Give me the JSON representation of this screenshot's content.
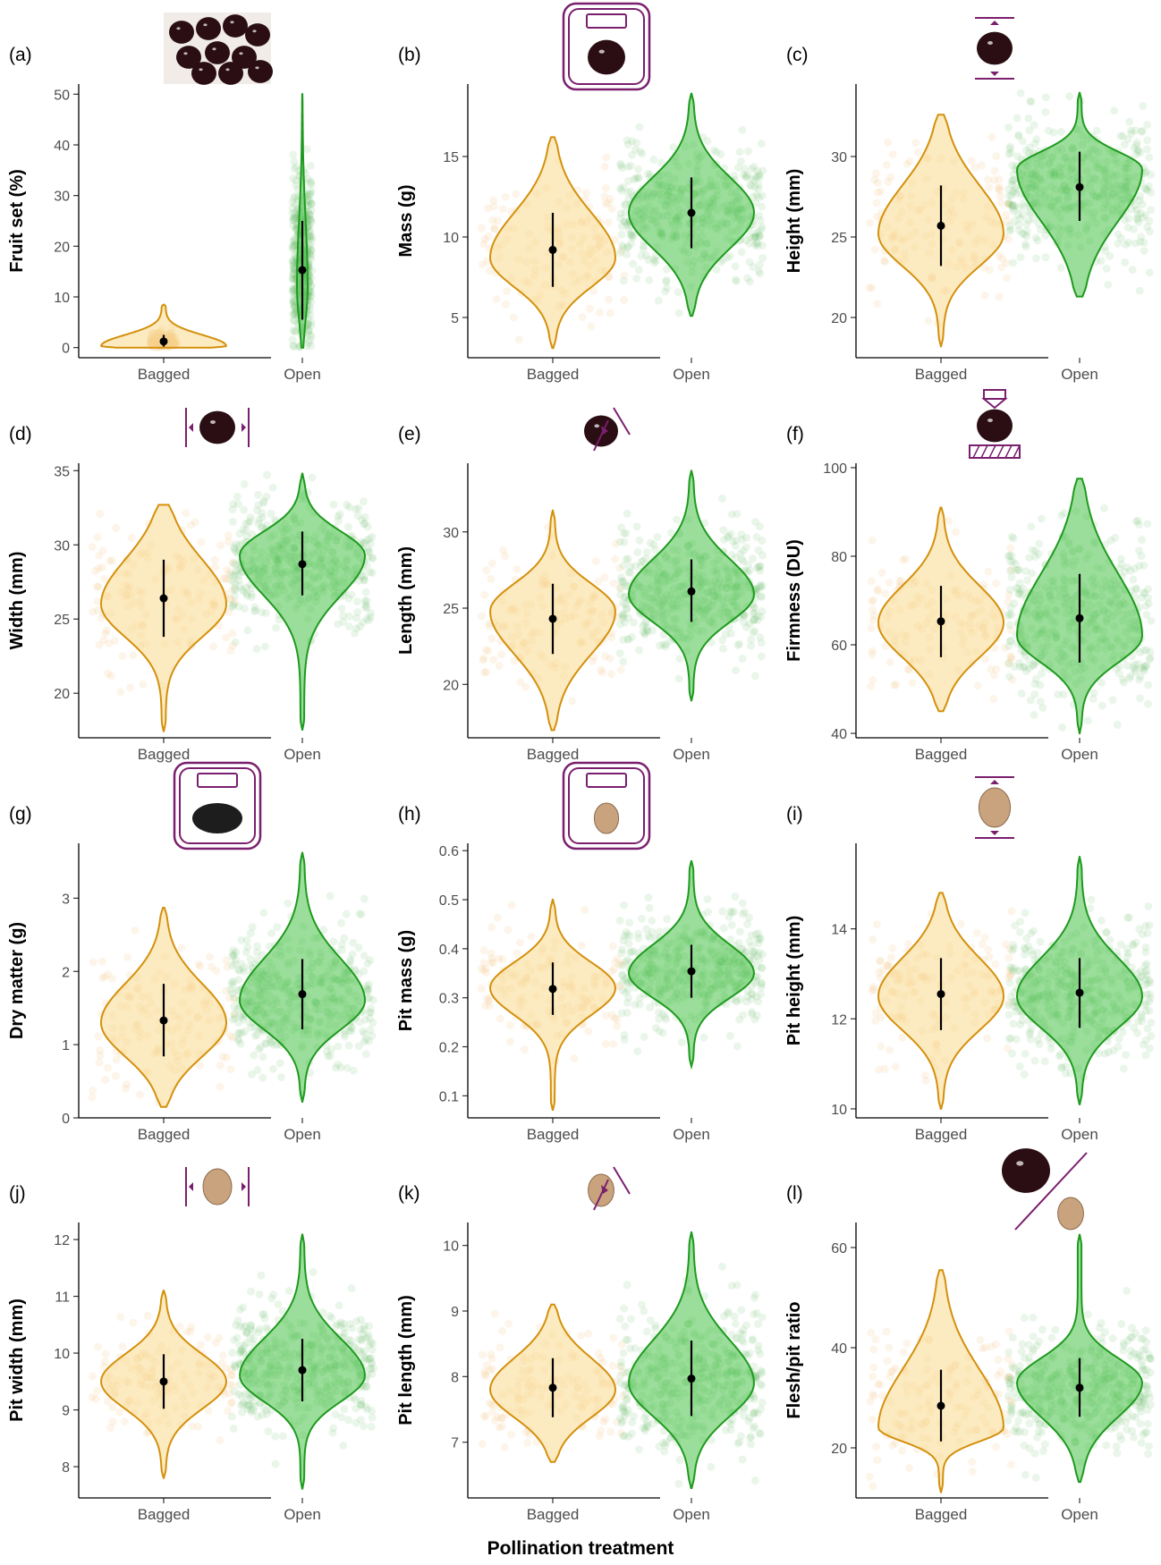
{
  "figure": {
    "x_axis_title": "Pollination treatment",
    "colors": {
      "bagged_line": "#D4900C",
      "bagged_fill": "#F9D98C",
      "bagged_points": "#F3C98A",
      "open_line": "#1E9A1E",
      "open_fill": "#49C349",
      "open_points": "#58B858",
      "accent": "#7A1F6E",
      "cherry": "#2A0E14",
      "pit": "#C9A27E"
    }
  },
  "chart_data": [
    {
      "panel": "(a)",
      "type": "violin",
      "ylabel": "Fruit set (%)",
      "categories": [
        "Bagged",
        "Open"
      ],
      "ylim": [
        -2,
        52
      ],
      "yticks": [
        0,
        10,
        20,
        30,
        40,
        50
      ],
      "icon": "cherries-photo",
      "series": [
        {
          "name": "Bagged",
          "mean": 1.2,
          "sd_low": 0.2,
          "sd_high": 2.5,
          "min": 0,
          "max": 8.5,
          "mode": 0.3,
          "width": "narrow"
        },
        {
          "name": "Open",
          "mean": 15.3,
          "sd_low": 5.5,
          "sd_high": 25.0,
          "min": 0,
          "max": 50,
          "mode": 12,
          "width": "thin"
        }
      ]
    },
    {
      "panel": "(b)",
      "type": "violin",
      "ylabel": "Mass (g)",
      "categories": [
        "Bagged",
        "Open"
      ],
      "ylim": [
        2.5,
        19.5
      ],
      "yticks": [
        5,
        10,
        15
      ],
      "icon": "scale-cherry-icon",
      "series": [
        {
          "name": "Bagged",
          "mean": 9.2,
          "sd_low": 6.9,
          "sd_high": 11.5,
          "min": 3.1,
          "max": 16.2,
          "mode": 8.7
        },
        {
          "name": "Open",
          "mean": 11.5,
          "sd_low": 9.3,
          "sd_high": 13.7,
          "min": 5.1,
          "max": 18.9,
          "mode": 11.5
        }
      ]
    },
    {
      "panel": "(c)",
      "type": "violin",
      "ylabel": "Height (mm)",
      "categories": [
        "Bagged",
        "Open"
      ],
      "ylim": [
        17.5,
        34.5
      ],
      "yticks": [
        20,
        25,
        30
      ],
      "icon": "cherry-height-icon",
      "series": [
        {
          "name": "Bagged",
          "mean": 25.7,
          "sd_low": 23.2,
          "sd_high": 28.2,
          "min": 18.2,
          "max": 32.6,
          "mode": 25.2
        },
        {
          "name": "Open",
          "mean": 28.1,
          "sd_low": 26.0,
          "sd_high": 30.3,
          "min": 21.3,
          "max": 34.0,
          "mode": 29.2
        }
      ]
    },
    {
      "panel": "(d)",
      "type": "violin",
      "ylabel": "Width (mm)",
      "categories": [
        "Bagged",
        "Open"
      ],
      "ylim": [
        17.0,
        35.5
      ],
      "yticks": [
        20,
        25,
        30,
        35
      ],
      "icon": "cherry-width-icon",
      "series": [
        {
          "name": "Bagged",
          "mean": 26.4,
          "sd_low": 23.8,
          "sd_high": 29.0,
          "min": 17.4,
          "max": 32.7,
          "mode": 26.0
        },
        {
          "name": "Open",
          "mean": 28.7,
          "sd_low": 26.6,
          "sd_high": 30.9,
          "min": 17.5,
          "max": 34.8,
          "mode": 29.3
        }
      ]
    },
    {
      "panel": "(e)",
      "type": "violin",
      "ylabel": "Length (mm)",
      "categories": [
        "Bagged",
        "Open"
      ],
      "ylim": [
        16.5,
        34.5
      ],
      "yticks": [
        20,
        25,
        30
      ],
      "icon": "cherry-length-icon",
      "series": [
        {
          "name": "Bagged",
          "mean": 24.3,
          "sd_low": 22.0,
          "sd_high": 26.6,
          "min": 17.0,
          "max": 31.4,
          "mode": 24.8
        },
        {
          "name": "Open",
          "mean": 26.1,
          "sd_low": 24.1,
          "sd_high": 28.2,
          "min": 18.9,
          "max": 34.0,
          "mode": 25.9
        }
      ]
    },
    {
      "panel": "(f)",
      "type": "violin",
      "ylabel": "Firmness (DU)",
      "categories": [
        "Bagged",
        "Open"
      ],
      "ylim": [
        39,
        101
      ],
      "yticks": [
        40,
        60,
        80,
        100
      ],
      "icon": "firmness-tester-icon",
      "series": [
        {
          "name": "Bagged",
          "mean": 65.3,
          "sd_low": 57.2,
          "sd_high": 73.3,
          "min": 45.0,
          "max": 91.0,
          "mode": 65.0
        },
        {
          "name": "Open",
          "mean": 66.0,
          "sd_low": 56.0,
          "sd_high": 76.0,
          "min": 40.0,
          "max": 97.5,
          "mode": 62.0
        }
      ]
    },
    {
      "panel": "(g)",
      "type": "violin",
      "ylabel": "Dry matter (g)",
      "categories": [
        "Bagged",
        "Open"
      ],
      "ylim": [
        0,
        3.75
      ],
      "yticks": [
        0,
        1,
        2,
        3
      ],
      "icon": "scale-dry-matter-icon",
      "series": [
        {
          "name": "Bagged",
          "mean": 1.33,
          "sd_low": 0.84,
          "sd_high": 1.83,
          "min": 0.15,
          "max": 2.87,
          "mode": 1.3
        },
        {
          "name": "Open",
          "mean": 1.69,
          "sd_low": 1.21,
          "sd_high": 2.17,
          "min": 0.22,
          "max": 3.62,
          "mode": 1.6
        }
      ]
    },
    {
      "panel": "(h)",
      "type": "violin",
      "ylabel": "Pit mass (g)",
      "categories": [
        "Bagged",
        "Open"
      ],
      "ylim": [
        0.055,
        0.615
      ],
      "yticks": [
        0.1,
        0.2,
        0.3,
        0.4,
        0.5,
        0.6
      ],
      "icon": "scale-pit-icon",
      "series": [
        {
          "name": "Bagged",
          "mean": 0.318,
          "sd_low": 0.265,
          "sd_high": 0.372,
          "min": 0.07,
          "max": 0.5,
          "mode": 0.32
        },
        {
          "name": "Open",
          "mean": 0.354,
          "sd_low": 0.3,
          "sd_high": 0.408,
          "min": 0.16,
          "max": 0.58,
          "mode": 0.35
        }
      ]
    },
    {
      "panel": "(i)",
      "type": "violin",
      "ylabel": "Pit height (mm)",
      "categories": [
        "Bagged",
        "Open"
      ],
      "ylim": [
        9.8,
        15.9
      ],
      "yticks": [
        10,
        12,
        14
      ],
      "icon": "pit-height-icon",
      "series": [
        {
          "name": "Bagged",
          "mean": 12.55,
          "sd_low": 11.75,
          "sd_high": 13.35,
          "min": 10.0,
          "max": 14.8,
          "mode": 12.5
        },
        {
          "name": "Open",
          "mean": 12.58,
          "sd_low": 11.8,
          "sd_high": 13.35,
          "min": 10.1,
          "max": 15.6,
          "mode": 12.5
        }
      ]
    },
    {
      "panel": "(j)",
      "type": "violin",
      "ylabel": "Pit width (mm)",
      "categories": [
        "Bagged",
        "Open"
      ],
      "ylim": [
        7.45,
        12.3
      ],
      "yticks": [
        8,
        9,
        10,
        11,
        12
      ],
      "icon": "pit-width-icon",
      "series": [
        {
          "name": "Bagged",
          "mean": 9.5,
          "sd_low": 9.02,
          "sd_high": 9.98,
          "min": 7.8,
          "max": 11.1,
          "mode": 9.5
        },
        {
          "name": "Open",
          "mean": 9.7,
          "sd_low": 9.15,
          "sd_high": 10.25,
          "min": 7.6,
          "max": 12.1,
          "mode": 9.6
        }
      ]
    },
    {
      "panel": "(k)",
      "type": "violin",
      "ylabel": "Pit length (mm)",
      "categories": [
        "Bagged",
        "Open"
      ],
      "ylim": [
        6.15,
        10.35
      ],
      "yticks": [
        7,
        8,
        9,
        10
      ],
      "icon": "pit-length-icon",
      "series": [
        {
          "name": "Bagged",
          "mean": 7.83,
          "sd_low": 7.38,
          "sd_high": 8.28,
          "min": 6.7,
          "max": 9.1,
          "mode": 7.8
        },
        {
          "name": "Open",
          "mean": 7.97,
          "sd_low": 7.4,
          "sd_high": 8.55,
          "min": 6.3,
          "max": 10.2,
          "mode": 7.9
        }
      ]
    },
    {
      "panel": "(l)",
      "type": "violin",
      "ylabel": "Flesh/pit ratio",
      "categories": [
        "Bagged",
        "Open"
      ],
      "ylim": [
        10,
        65
      ],
      "yticks": [
        20,
        40,
        60
      ],
      "icon": "flesh-pit-ratio-icon",
      "series": [
        {
          "name": "Bagged",
          "mean": 28.4,
          "sd_low": 21.3,
          "sd_high": 35.6,
          "min": 11.0,
          "max": 55.5,
          "mode": 24.0
        },
        {
          "name": "Open",
          "mean": 32.0,
          "sd_low": 26.2,
          "sd_high": 37.9,
          "min": 13.2,
          "max": 62.7,
          "mode": 33.0
        }
      ]
    }
  ]
}
